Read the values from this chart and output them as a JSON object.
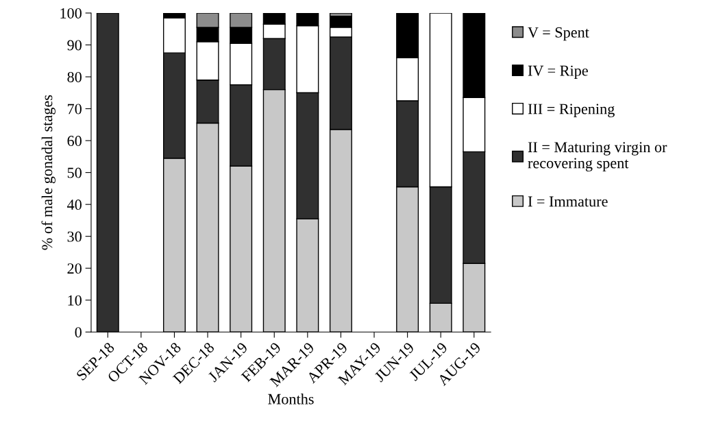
{
  "chart_data": {
    "type": "bar",
    "stacked": true,
    "xlabel": "Months",
    "ylabel": "% of male gonadal stages",
    "categories": [
      "SEP-18",
      "OCT-18",
      "NOV-18",
      "DEC-18",
      "JAN-19",
      "FEB-19",
      "MAR-19",
      "APR-19",
      "MAY-19",
      "JUN-19",
      "JUL-19",
      "AUG-19"
    ],
    "series": [
      {
        "name": "I = Immature",
        "color": "#c8c8c8",
        "values": [
          null,
          null,
          54.5,
          65.5,
          52,
          76,
          35.5,
          63.5,
          null,
          45.5,
          9,
          21.5
        ]
      },
      {
        "name": "II = Maturing virgin or\nrecovering spent",
        "color": "#303030",
        "values": [
          100,
          null,
          33,
          13.5,
          25.5,
          16,
          39.5,
          29,
          null,
          27,
          36.5,
          35
        ]
      },
      {
        "name": "III = Ripening",
        "color": "#ffffff",
        "values": [
          null,
          null,
          11,
          12,
          13,
          4.5,
          21,
          3,
          null,
          13.5,
          54.5,
          17
        ]
      },
      {
        "name": "IV = Ripe",
        "color": "#000000",
        "values": [
          null,
          null,
          1.5,
          4.5,
          5,
          3.5,
          4,
          3.5,
          null,
          14,
          null,
          26.5
        ]
      },
      {
        "name": "V = Spent",
        "color": "#8c8c8c",
        "values": [
          null,
          null,
          null,
          4.5,
          4.5,
          null,
          null,
          1,
          null,
          null,
          null,
          null
        ]
      }
    ],
    "ylim": [
      0,
      100
    ],
    "yticks": [
      0,
      10,
      20,
      30,
      40,
      50,
      60,
      70,
      80,
      90,
      100
    ],
    "legend": "right"
  }
}
